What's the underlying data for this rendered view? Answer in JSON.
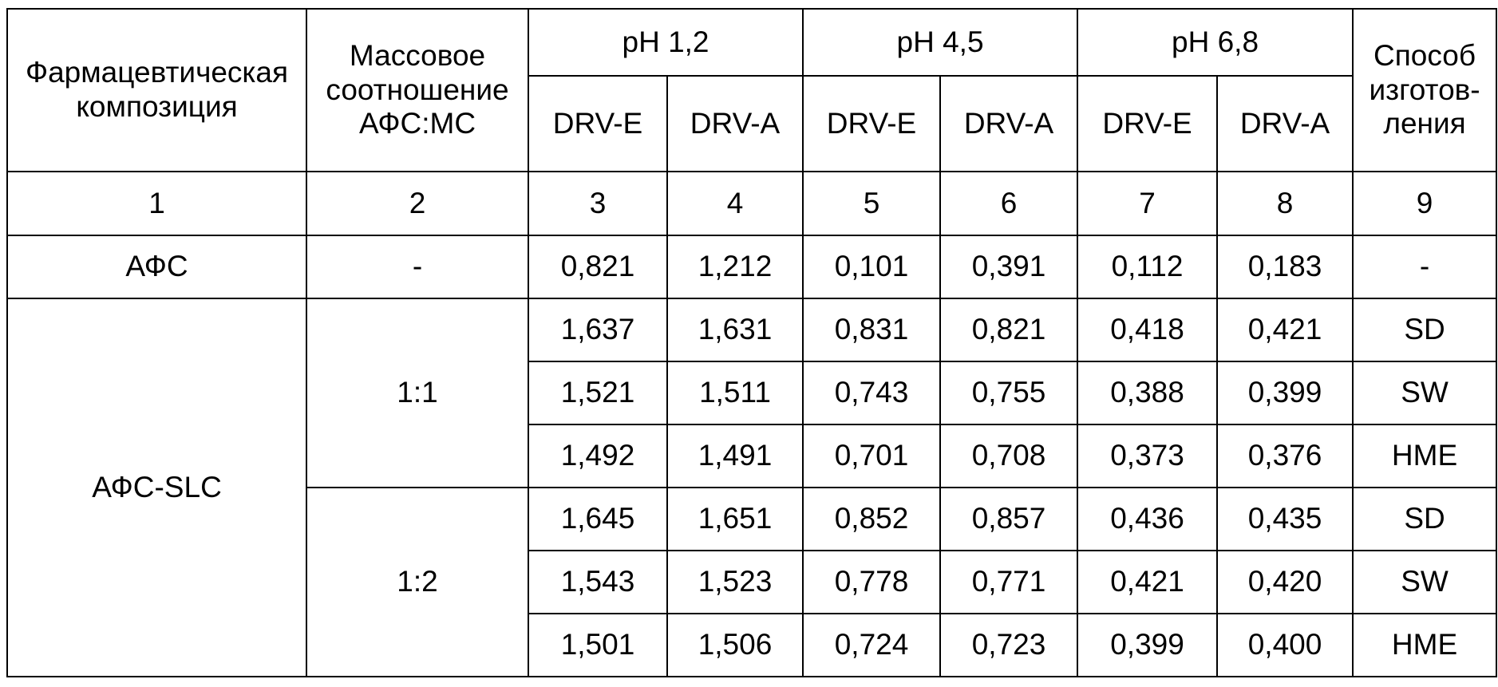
{
  "table": {
    "header": {
      "composition": [
        "Фармацевтическая",
        "композиция"
      ],
      "ratio": [
        "Массовое",
        "соотношение",
        "АФС:МС"
      ],
      "groups": [
        "pH 1,2",
        "pH 4,5",
        "pH 6,8"
      ],
      "subheaders": [
        "DRV-E",
        "DRV-A",
        "DRV-E",
        "DRV-A",
        "DRV-E",
        "DRV-A"
      ],
      "method": [
        "Способ",
        "изготов-",
        "ления"
      ]
    },
    "column_numbers": [
      "1",
      "2",
      "3",
      "4",
      "5",
      "6",
      "7",
      "8",
      "9"
    ],
    "rows": [
      {
        "composition": "АФС",
        "ratio": "-",
        "values": [
          "0,821",
          "1,212",
          "0,101",
          "0,391",
          "0,112",
          "0,183"
        ],
        "method": "-"
      }
    ],
    "group": {
      "composition": "АФС-SLC",
      "subgroups": [
        {
          "ratio": "1:1",
          "rows": [
            {
              "values": [
                "1,637",
                "1,631",
                "0,831",
                "0,821",
                "0,418",
                "0,421"
              ],
              "method": "SD"
            },
            {
              "values": [
                "1,521",
                "1,511",
                "0,743",
                "0,755",
                "0,388",
                "0,399"
              ],
              "method": "SW"
            },
            {
              "values": [
                "1,492",
                "1,491",
                "0,701",
                "0,708",
                "0,373",
                "0,376"
              ],
              "method": "HME"
            }
          ]
        },
        {
          "ratio": "1:2",
          "rows": [
            {
              "values": [
                "1,645",
                "1,651",
                "0,852",
                "0,857",
                "0,436",
                "0,435"
              ],
              "method": "SD"
            },
            {
              "values": [
                "1,543",
                "1,523",
                "0,778",
                "0,771",
                "0,421",
                "0,420"
              ],
              "method": "SW"
            },
            {
              "values": [
                "1,501",
                "1,506",
                "0,724",
                "0,723",
                "0,399",
                "0,400"
              ],
              "method": "HME"
            }
          ]
        }
      ]
    }
  }
}
